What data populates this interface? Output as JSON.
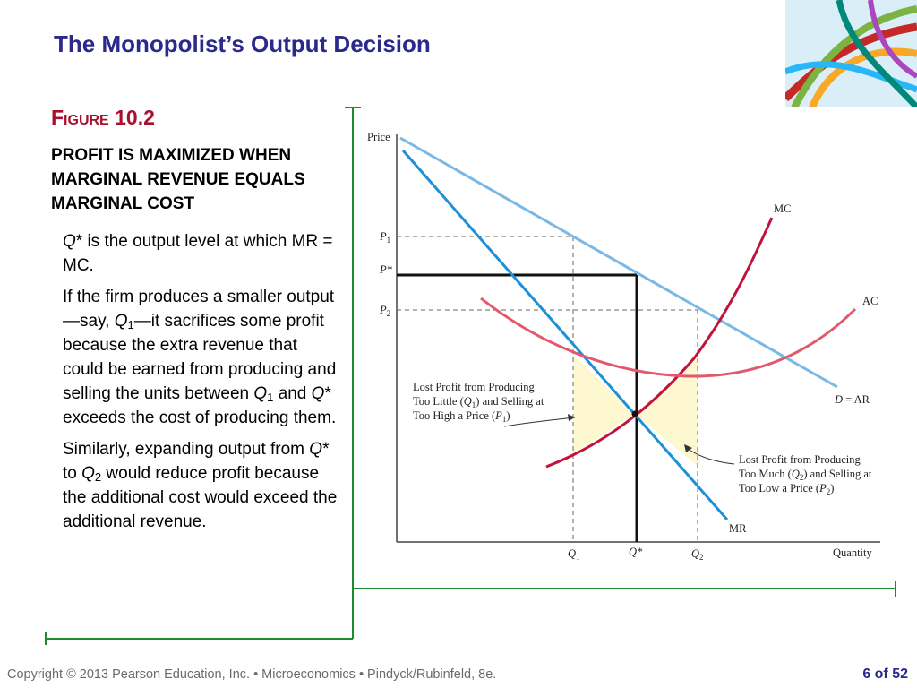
{
  "slide": {
    "title": "The Monopolist’s Output Decision",
    "figure_label": "Figure 10.2",
    "figure_caption": "PROFIT IS MAXIMIZED WHEN MARGINAL REVENUE EQUALS MARGINAL COST",
    "bullet1": {
      "a": "Q",
      "b": "* is the output level at which MR = MC."
    },
    "bullet2": {
      "a": "If the firm produces a smaller output—say, ",
      "b": "Q",
      "c": "1",
      "d": "—it sacrifices some profit because the extra revenue that could be earned from producing and selling the units between ",
      "e": "Q",
      "f": "1",
      "g": " and ",
      "h": "Q",
      "i": "* exceeds the cost of producing them."
    },
    "bullet3": {
      "a": "Similarly, expanding output from ",
      "b": "Q",
      "c": "* to ",
      "d": "Q",
      "e": "2",
      "f": " would reduce profit because the additional cost would exceed the additional revenue."
    }
  },
  "footer": {
    "copyright": "Copyright © 2013  Pearson Education, Inc. •  Microeconomics  •  Pindyck/Rubinfeld, 8e.",
    "page": "6 of 52"
  },
  "chart_data": {
    "type": "line",
    "xlabel": "Quantity",
    "ylabel": "Price",
    "x_ticks": [
      "Q1",
      "Q*",
      "Q2"
    ],
    "y_ticks": [
      "P1",
      "P*",
      "P2"
    ],
    "series": [
      {
        "name": "D = AR",
        "color": "#7ab8e6"
      },
      {
        "name": "MR",
        "color": "#1e90d8"
      },
      {
        "name": "MC",
        "color": "#c0143c"
      },
      {
        "name": "AC",
        "color": "#e2596e"
      }
    ],
    "annotations": {
      "lost_little": [
        "Lost Profit from Producing",
        "Too Little (Q1) and Selling at",
        "Too High a Price (P1)"
      ],
      "lost_much": [
        "Lost Profit from Producing",
        "Too Much (Q2) and Selling at",
        "Too Low a Price (P2)"
      ]
    },
    "shading_color": "#fdf8cf"
  }
}
